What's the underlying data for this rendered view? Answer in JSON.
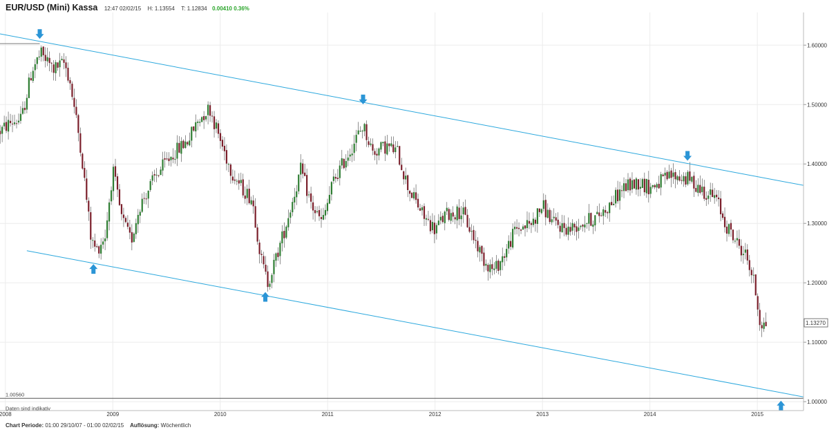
{
  "header": {
    "title": "EUR/USD (Mini) Kassa",
    "time": "12:47 02/02/15",
    "high": "H: 1.13554",
    "low": "T: 1.12834",
    "change": "0.00410 0.36%"
  },
  "chart_data": {
    "type": "candlestick",
    "title": "EUR/USD (Mini) Kassa",
    "x_range": [
      2007.95,
      2015.43
    ],
    "ylim": [
      0.985,
      1.655
    ],
    "x_ticks": [
      {
        "label": "2008",
        "value": 2008.0
      },
      {
        "label": "2009",
        "value": 2009.0
      },
      {
        "label": "2010",
        "value": 2010.0
      },
      {
        "label": "2011",
        "value": 2011.0
      },
      {
        "label": "2012",
        "value": 2012.0
      },
      {
        "label": "2013",
        "value": 2013.0
      },
      {
        "label": "2014",
        "value": 2014.0
      },
      {
        "label": "2015",
        "value": 2015.0
      }
    ],
    "y_ticks": [
      {
        "label": "1.00000",
        "value": 1.0
      },
      {
        "label": "1.10000",
        "value": 1.1
      },
      {
        "label": "1.20000",
        "value": 1.2
      },
      {
        "label": "1.30000",
        "value": 1.3
      },
      {
        "label": "1.40000",
        "value": 1.4
      },
      {
        "label": "1.50000",
        "value": 1.5
      },
      {
        "label": "1.60000",
        "value": 1.6
      }
    ],
    "last_price": {
      "label": "1.13270",
      "value": 1.1327
    },
    "low_line": {
      "label": "1.00560",
      "value": 1.0056
    },
    "high_line": {
      "value": 1.6025
    },
    "note": "Daten sind indikativ",
    "trend_lines": [
      {
        "name": "upper-channel",
        "x1": 2007.95,
        "y1": 1.619,
        "x2": 2015.43,
        "y2": 1.364
      },
      {
        "name": "lower-channel",
        "x1": 2008.2,
        "y1": 1.254,
        "x2": 2015.43,
        "y2": 1.008
      }
    ],
    "arrows": [
      {
        "dir": "down",
        "x": 2008.32,
        "y": 1.607
      },
      {
        "dir": "down",
        "x": 2011.33,
        "y": 1.497
      },
      {
        "dir": "down",
        "x": 2014.35,
        "y": 1.402
      },
      {
        "dir": "up",
        "x": 2008.82,
        "y": 1.235
      },
      {
        "dir": "up",
        "x": 2010.42,
        "y": 1.188
      },
      {
        "dir": "up",
        "x": 2015.22,
        "y": 1.005
      }
    ],
    "anchors": [
      [
        2007.95,
        1.455
      ],
      [
        2008.05,
        1.47
      ],
      [
        2008.15,
        1.475
      ],
      [
        2008.25,
        1.56
      ],
      [
        2008.33,
        1.585
      ],
      [
        2008.45,
        1.56
      ],
      [
        2008.55,
        1.57
      ],
      [
        2008.6,
        1.54
      ],
      [
        2008.7,
        1.43
      ],
      [
        2008.8,
        1.27
      ],
      [
        2008.85,
        1.255
      ],
      [
        2008.93,
        1.28
      ],
      [
        2009.0,
        1.39
      ],
      [
        2009.08,
        1.31
      ],
      [
        2009.17,
        1.27
      ],
      [
        2009.25,
        1.33
      ],
      [
        2009.4,
        1.38
      ],
      [
        2009.55,
        1.415
      ],
      [
        2009.7,
        1.44
      ],
      [
        2009.8,
        1.475
      ],
      [
        2009.9,
        1.495
      ],
      [
        2010.0,
        1.44
      ],
      [
        2010.1,
        1.39
      ],
      [
        2010.2,
        1.36
      ],
      [
        2010.3,
        1.34
      ],
      [
        2010.38,
        1.24
      ],
      [
        2010.44,
        1.2
      ],
      [
        2010.5,
        1.23
      ],
      [
        2010.6,
        1.29
      ],
      [
        2010.75,
        1.39
      ],
      [
        2010.85,
        1.33
      ],
      [
        2010.95,
        1.3
      ],
      [
        2011.05,
        1.37
      ],
      [
        2011.2,
        1.42
      ],
      [
        2011.33,
        1.465
      ],
      [
        2011.42,
        1.42
      ],
      [
        2011.55,
        1.43
      ],
      [
        2011.65,
        1.42
      ],
      [
        2011.75,
        1.36
      ],
      [
        2011.9,
        1.31
      ],
      [
        2012.0,
        1.29
      ],
      [
        2012.1,
        1.315
      ],
      [
        2012.25,
        1.32
      ],
      [
        2012.35,
        1.28
      ],
      [
        2012.45,
        1.24
      ],
      [
        2012.55,
        1.22
      ],
      [
        2012.65,
        1.25
      ],
      [
        2012.75,
        1.29
      ],
      [
        2012.9,
        1.3
      ],
      [
        2013.0,
        1.33
      ],
      [
        2013.1,
        1.3
      ],
      [
        2013.25,
        1.29
      ],
      [
        2013.35,
        1.3
      ],
      [
        2013.5,
        1.31
      ],
      [
        2013.62,
        1.33
      ],
      [
        2013.75,
        1.36
      ],
      [
        2013.9,
        1.37
      ],
      [
        2014.0,
        1.36
      ],
      [
        2014.2,
        1.38
      ],
      [
        2014.35,
        1.375
      ],
      [
        2014.5,
        1.355
      ],
      [
        2014.62,
        1.34
      ],
      [
        2014.7,
        1.3
      ],
      [
        2014.8,
        1.27
      ],
      [
        2014.9,
        1.245
      ],
      [
        2014.97,
        1.2
      ],
      [
        2015.03,
        1.13
      ],
      [
        2015.07,
        1.13
      ]
    ]
  },
  "footer": {
    "period_label": "Chart Periode:",
    "period_value": "01:00 29/10/07 - 01:00 02/02/15",
    "resolution_label": "Auflösung:",
    "resolution_value": "Wöchentlich"
  },
  "colors": {
    "up": "#2e7d32",
    "down": "#7b1f2b",
    "trend": "#2aa7dd",
    "arrow": "#2b95d6",
    "grid": "#ececec"
  }
}
